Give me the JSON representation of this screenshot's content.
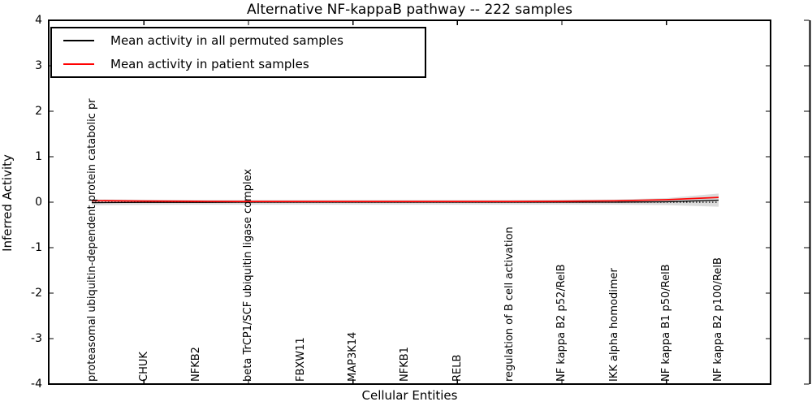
{
  "chart_data": {
    "type": "line",
    "title": "Alternative NF-kappaB pathway -- 222 samples",
    "xlabel": "Cellular Entities",
    "ylabel": "Inferred Activity",
    "ylim": [
      -4,
      4
    ],
    "y_ticks": [
      "4",
      "3",
      "2",
      "1",
      "0",
      "-1",
      "-2",
      "-3",
      "-4"
    ],
    "grid": false,
    "legend_position": "upper left",
    "zero_line": "dotted black at y=0",
    "categories": [
      "proteasomal ubiquitin-dependent protein catabolic pr",
      "CHUK",
      "NFKB2",
      "beta TrCP1/SCF ubiquitin ligase complex",
      "FBXW11",
      "MAP3K14",
      "NFKB1",
      "RELB",
      "regulation of B cell activation",
      "NF kappa B2 p52/RelB",
      "IKK alpha homodimer",
      "NF kappa B1 p50/RelB",
      "NF kappa B2 p100/RelB"
    ],
    "series": [
      {
        "name": "Mean activity in all permuted samples",
        "color": "#000000",
        "values": [
          -0.01,
          -0.005,
          -0.005,
          0,
          0,
          0,
          0,
          0,
          0,
          0,
          0,
          0.01,
          0.045
        ]
      },
      {
        "name": "Mean activity in patient samples",
        "color": "#ff0000",
        "values": [
          0.035,
          0.025,
          0.02,
          0.015,
          0.015,
          0.015,
          0.015,
          0.015,
          0.015,
          0.02,
          0.03,
          0.055,
          0.105
        ]
      }
    ],
    "band": {
      "name": "permuted samples std band",
      "color": "#000000",
      "opacity": 0.14,
      "upper": [
        0.065,
        0.055,
        0.05,
        0.05,
        0.05,
        0.05,
        0.05,
        0.05,
        0.05,
        0.055,
        0.06,
        0.09,
        0.19
      ],
      "lower": [
        -0.065,
        -0.06,
        -0.055,
        -0.055,
        -0.055,
        -0.055,
        -0.055,
        -0.055,
        -0.055,
        -0.055,
        -0.055,
        -0.065,
        -0.1
      ]
    }
  },
  "legend": {
    "entries": [
      {
        "label": "Mean activity in all permuted samples",
        "color": "#000000"
      },
      {
        "label": "Mean activity in patient samples",
        "color": "#ff0000"
      }
    ]
  }
}
